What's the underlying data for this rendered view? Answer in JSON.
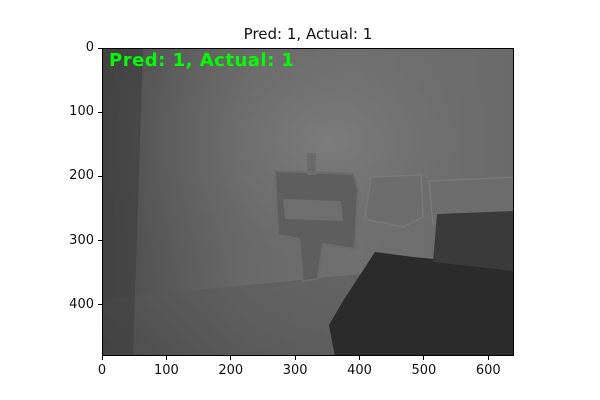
{
  "figure": {
    "title": "Pred: 1, Actual: 1",
    "overlay_text": "Pred: 1, Actual: 1",
    "overlay_color": "#00ff00",
    "image_description_tags": [
      "depth-image",
      "grayscale",
      "indoor-scene",
      "chairs"
    ],
    "image_extent": {
      "x": [
        0,
        640
      ],
      "y": [
        0,
        480
      ]
    },
    "x_ticks": [
      "0",
      "100",
      "200",
      "300",
      "400",
      "500",
      "600"
    ],
    "y_ticks": [
      "0",
      "100",
      "200",
      "300",
      "400"
    ]
  }
}
